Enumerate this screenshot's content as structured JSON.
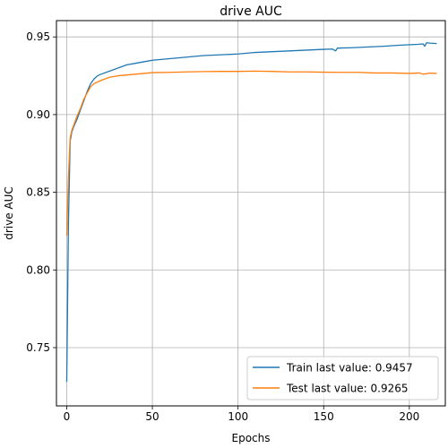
{
  "chart_data": {
    "type": "line",
    "title": "drive AUC",
    "xlabel": "Epochs",
    "ylabel": "drive AUC",
    "xlim": [
      -6,
      221
    ],
    "ylim": [
      0.7125,
      0.9605
    ],
    "grid": true,
    "legend_position": "lower-right",
    "x_ticks": [
      0,
      50,
      100,
      150,
      200
    ],
    "y_ticks": [
      0.75,
      0.8,
      0.85,
      0.9,
      0.95
    ],
    "x_tick_labels": [
      "0",
      "50",
      "100",
      "150",
      "200"
    ],
    "y_tick_labels": [
      "0.75",
      "0.80",
      "0.85",
      "0.90",
      "0.95"
    ],
    "series": [
      {
        "name": "Train last value: 0.9457",
        "color": "#1f77b4",
        "points": [
          [
            0,
            0.728
          ],
          [
            1,
            0.83
          ],
          [
            2,
            0.883
          ],
          [
            3,
            0.889
          ],
          [
            4,
            0.892
          ],
          [
            6,
            0.897
          ],
          [
            8,
            0.903
          ],
          [
            10,
            0.909
          ],
          [
            12,
            0.915
          ],
          [
            14,
            0.92
          ],
          [
            16,
            0.923
          ],
          [
            18,
            0.925
          ],
          [
            20,
            0.926
          ],
          [
            25,
            0.928
          ],
          [
            30,
            0.93
          ],
          [
            35,
            0.932
          ],
          [
            40,
            0.933
          ],
          [
            45,
            0.934
          ],
          [
            50,
            0.935
          ],
          [
            60,
            0.936
          ],
          [
            70,
            0.937
          ],
          [
            80,
            0.938
          ],
          [
            90,
            0.9385
          ],
          [
            100,
            0.939
          ],
          [
            110,
            0.94
          ],
          [
            120,
            0.9405
          ],
          [
            130,
            0.941
          ],
          [
            140,
            0.9415
          ],
          [
            150,
            0.942
          ],
          [
            155,
            0.9422
          ],
          [
            157,
            0.941
          ],
          [
            158,
            0.9428
          ],
          [
            165,
            0.943
          ],
          [
            175,
            0.9435
          ],
          [
            185,
            0.944
          ],
          [
            195,
            0.9447
          ],
          [
            205,
            0.9452
          ],
          [
            208,
            0.9455
          ],
          [
            209,
            0.944
          ],
          [
            210,
            0.9462
          ],
          [
            212,
            0.946
          ],
          [
            216,
            0.9457
          ]
        ]
      },
      {
        "name": "Test last value: 0.9265",
        "color": "#ff7f0e",
        "points": [
          [
            0,
            0.822
          ],
          [
            1,
            0.86
          ],
          [
            2,
            0.885
          ],
          [
            3,
            0.89
          ],
          [
            4,
            0.893
          ],
          [
            6,
            0.899
          ],
          [
            8,
            0.904
          ],
          [
            10,
            0.91
          ],
          [
            12,
            0.914
          ],
          [
            14,
            0.918
          ],
          [
            16,
            0.92
          ],
          [
            18,
            0.921
          ],
          [
            20,
            0.922
          ],
          [
            25,
            0.924
          ],
          [
            30,
            0.925
          ],
          [
            40,
            0.926
          ],
          [
            50,
            0.927
          ],
          [
            60,
            0.9272
          ],
          [
            70,
            0.9275
          ],
          [
            80,
            0.9277
          ],
          [
            90,
            0.9278
          ],
          [
            100,
            0.9278
          ],
          [
            110,
            0.928
          ],
          [
            120,
            0.9278
          ],
          [
            130,
            0.9275
          ],
          [
            140,
            0.9275
          ],
          [
            150,
            0.9273
          ],
          [
            160,
            0.9272
          ],
          [
            170,
            0.9272
          ],
          [
            180,
            0.9268
          ],
          [
            190,
            0.9268
          ],
          [
            200,
            0.9265
          ],
          [
            206,
            0.9268
          ],
          [
            208,
            0.926
          ],
          [
            212,
            0.9267
          ],
          [
            216,
            0.9265
          ]
        ]
      }
    ]
  }
}
